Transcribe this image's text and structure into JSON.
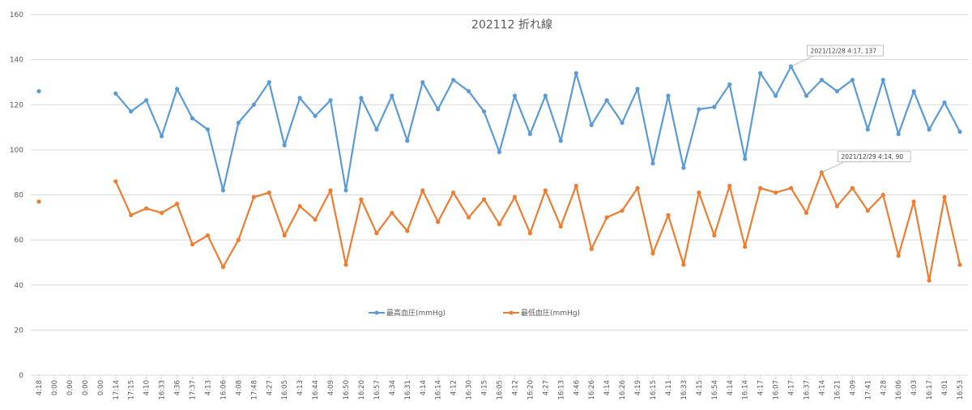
{
  "chart_data": {
    "type": "line",
    "title": "202112  折れ線",
    "xlabel": "",
    "ylabel": "",
    "ylim": [
      0,
      160
    ],
    "yticks": [
      0,
      20,
      40,
      60,
      80,
      100,
      120,
      140,
      160
    ],
    "grid": true,
    "legend_position": "bottom-inside",
    "categories": [
      "4:18",
      "0:00",
      "0:00",
      "0:00",
      "0:00",
      "17:14",
      "17:15",
      "4:10",
      "16:33",
      "4:36",
      "17:37",
      "4:13",
      "16:06",
      "4:08",
      "17:48",
      "4:27",
      "16:05",
      "4:13",
      "16:44",
      "4:09",
      "16:50",
      "16:20",
      "16:57",
      "4:34",
      "16:31",
      "4:14",
      "16:14",
      "4:12",
      "16:30",
      "4:15",
      "16:05",
      "4:12",
      "16:20",
      "4:27",
      "16:13",
      "4:46",
      "16:26",
      "4:14",
      "16:26",
      "4:19",
      "16:15",
      "4:11",
      "16:33",
      "4:15",
      "16:54",
      "4:14",
      "16:14",
      "4:17",
      "16:07",
      "4:17",
      "16:37",
      "4:14",
      "16:21",
      "4:09",
      "17:41",
      "4:28",
      "16:06",
      "4:03",
      "16:17",
      "4:01",
      "16:53"
    ],
    "series": [
      {
        "name": "最高血圧(mmHg)",
        "color": "#5B9BD5",
        "values": [
          126,
          null,
          null,
          null,
          null,
          125,
          117,
          122,
          106,
          127,
          114,
          109,
          82,
          112,
          120,
          130,
          102,
          123,
          115,
          122,
          82,
          123,
          109,
          124,
          104,
          130,
          118,
          131,
          126,
          117,
          99,
          124,
          107,
          124,
          104,
          134,
          111,
          122,
          112,
          127,
          94,
          124,
          92,
          118,
          119,
          129,
          96,
          134,
          124,
          137,
          124,
          131,
          126,
          131,
          109,
          131,
          107,
          126,
          109,
          121,
          108
        ]
      },
      {
        "name": "最低血圧(mmHg)",
        "color": "#ED7D31",
        "values": [
          77,
          null,
          null,
          null,
          null,
          86,
          71,
          74,
          72,
          76,
          58,
          62,
          48,
          60,
          79,
          81,
          62,
          75,
          69,
          82,
          49,
          78,
          63,
          72,
          64,
          82,
          68,
          81,
          70,
          78,
          67,
          79,
          63,
          82,
          66,
          84,
          56,
          70,
          73,
          83,
          54,
          71,
          49,
          81,
          62,
          84,
          57,
          83,
          81,
          83,
          72,
          90,
          75,
          83,
          73,
          80,
          53,
          77,
          42,
          79,
          49
        ]
      }
    ],
    "annotations": [
      {
        "series": 0,
        "index": 49,
        "text": "2021/12/28 4:17, 137"
      },
      {
        "series": 1,
        "index": 51,
        "text": "2021/12/29 4:14, 90"
      }
    ]
  }
}
